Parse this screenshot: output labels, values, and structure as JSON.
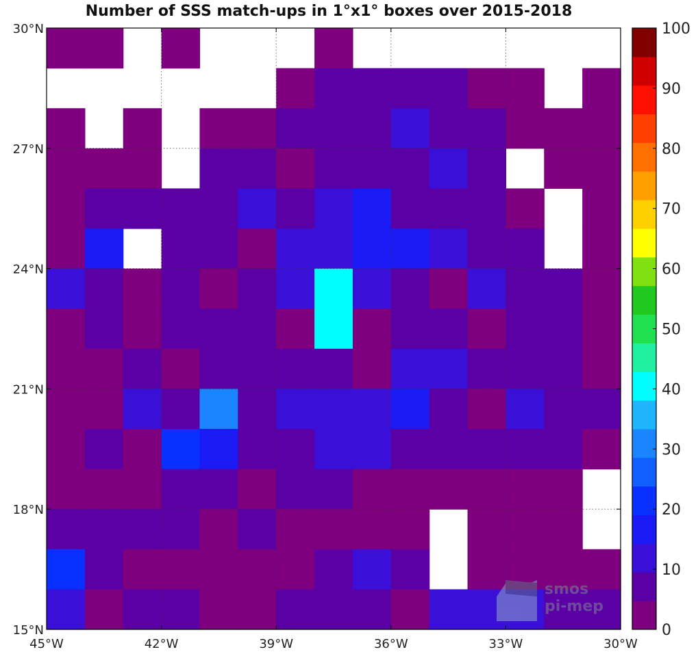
{
  "chart_data": {
    "type": "heatmap",
    "title": "Number of SSS match-ups in 1°x1° boxes over 2015-2018",
    "x_ticks": [
      "45°W",
      "42°W",
      "39°W",
      "36°W",
      "33°W",
      "30°W"
    ],
    "y_ticks": [
      "30°N",
      "27°N",
      "24°N",
      "21°N",
      "18°N",
      "15°N"
    ],
    "x_range": [
      -45,
      -30
    ],
    "y_range": [
      15,
      30
    ],
    "colorbar": {
      "min": 0,
      "max": 100,
      "step": 5,
      "tick_labels": [
        "100",
        "90",
        "80",
        "70",
        "60",
        "50",
        "40",
        "30",
        "20",
        "10",
        "0"
      ],
      "colors": [
        "#7f007f",
        "#5a00a4",
        "#3a10d8",
        "#1a1af5",
        "#0a30ff",
        "#1060ff",
        "#1a85ff",
        "#20b5ff",
        "#00ffff",
        "#20f0a0",
        "#20e050",
        "#20c820",
        "#80e010",
        "#ffff00",
        "#ffd000",
        "#ffa000",
        "#ff7000",
        "#ff4000",
        "#ff1000",
        "#d00000",
        "#800000"
      ]
    },
    "rows_from_top": [
      [
        0,
        0,
        null,
        0,
        null,
        null,
        null,
        0,
        null,
        null,
        null,
        null,
        null,
        null,
        null
      ],
      [
        null,
        null,
        null,
        null,
        null,
        null,
        0,
        5,
        5,
        5,
        5,
        0,
        0,
        null,
        0
      ],
      [
        0,
        null,
        0,
        null,
        0,
        0,
        5,
        5,
        5,
        10,
        5,
        5,
        0,
        0,
        0
      ],
      [
        0,
        0,
        0,
        null,
        5,
        5,
        0,
        5,
        5,
        5,
        10,
        5,
        null,
        0,
        0
      ],
      [
        0,
        5,
        5,
        5,
        5,
        10,
        5,
        10,
        15,
        5,
        5,
        5,
        0,
        null,
        0
      ],
      [
        0,
        15,
        null,
        5,
        5,
        0,
        10,
        10,
        15,
        15,
        10,
        5,
        5,
        null,
        0
      ],
      [
        10,
        5,
        0,
        5,
        0,
        5,
        10,
        40,
        10,
        5,
        0,
        10,
        5,
        5,
        0
      ],
      [
        0,
        5,
        0,
        5,
        5,
        5,
        0,
        40,
        0,
        5,
        5,
        0,
        5,
        5,
        0
      ],
      [
        0,
        0,
        5,
        0,
        5,
        5,
        5,
        5,
        0,
        10,
        10,
        5,
        5,
        5,
        0
      ],
      [
        0,
        0,
        10,
        5,
        30,
        5,
        10,
        10,
        10,
        15,
        5,
        0,
        10,
        5,
        5
      ],
      [
        0,
        5,
        0,
        20,
        15,
        5,
        5,
        10,
        10,
        5,
        5,
        5,
        5,
        5,
        0
      ],
      [
        0,
        0,
        0,
        5,
        5,
        0,
        5,
        5,
        0,
        0,
        0,
        0,
        0,
        0,
        null
      ],
      [
        5,
        5,
        5,
        5,
        0,
        5,
        0,
        0,
        0,
        0,
        null,
        0,
        0,
        0,
        null
      ],
      [
        20,
        5,
        0,
        0,
        0,
        0,
        0,
        5,
        10,
        5,
        null,
        0,
        0,
        0,
        0
      ],
      [
        10,
        0,
        5,
        5,
        0,
        0,
        5,
        5,
        5,
        0,
        10,
        10,
        10,
        5,
        5
      ]
    ]
  },
  "watermark": {
    "line1": "smos",
    "line2": "pi-mep"
  }
}
